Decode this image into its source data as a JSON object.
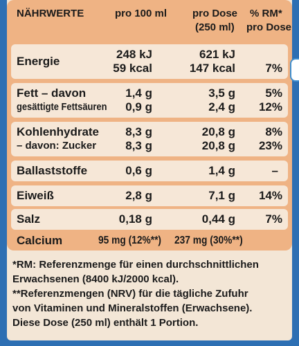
{
  "header": {
    "nutrients": "NÄHRWERTE",
    "per100": "pro 100 ml",
    "perDose_line1": "pro Dose",
    "perDose_line2": "(250 ml)",
    "rm_line1": "% RM*",
    "rm_line2": "pro Dose"
  },
  "rows": [
    {
      "name1": "Energie",
      "name2": "",
      "v100_1": "248 kJ",
      "v100_2": "59 kcal",
      "dose_1": "621 kJ",
      "dose_2": "147 kcal",
      "rm_1": "",
      "rm_2": "7%"
    },
    {
      "name1": "Fett – davon",
      "name2": "gesättigte Fettsäuren",
      "v100_1": "1,4 g",
      "v100_2": "0,9 g",
      "dose_1": "3,5 g",
      "dose_2": "2,4 g",
      "rm_1": "5%",
      "rm_2": "12%"
    },
    {
      "name1": "Kohlenhydrate",
      "name2": "– davon: Zucker",
      "v100_1": "8,3 g",
      "v100_2": "8,3 g",
      "dose_1": "20,8 g",
      "dose_2": "20,8 g",
      "rm_1": "8%",
      "rm_2": "23%"
    },
    {
      "name1": "Ballaststoffe",
      "v100_1": "0,6 g",
      "dose_1": "1,4 g",
      "rm_1": "–"
    },
    {
      "name1": "Eiweiß",
      "v100_1": "2,8 g",
      "dose_1": "7,1 g",
      "rm_1": "14%"
    },
    {
      "name1": "Salz",
      "v100_1": "0,18 g",
      "dose_1": "0,44 g",
      "rm_1": "7%"
    }
  ],
  "calcium": {
    "name": "Calcium",
    "v100": "95 mg (12%**)",
    "dose": "237 mg (30%**)"
  },
  "footnotes": {
    "line1": "*RM: Referenzmenge für einen durchschnittlichen",
    "line2": "Erwachsenen (8400 kJ/2000 kcal).",
    "line3": "**Referenzmengen (NRV) für die tägliche Zufuhr",
    "line4": "von Vitaminen und Mineralstoffen (Erwachsene).",
    "line5": "Diese Dose (250 ml) enthält 1 Portion."
  },
  "colors": {
    "background": "#2d6fb3",
    "table_header": "#efb384",
    "row_fill": "#f6e7d7",
    "card": "#f3e6d6"
  }
}
